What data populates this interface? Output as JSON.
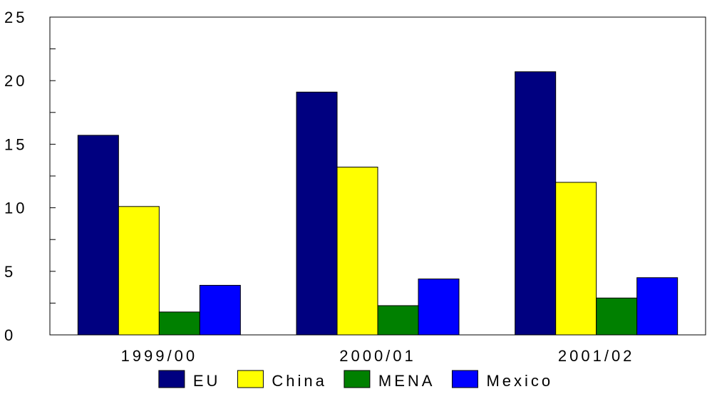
{
  "chart_data": {
    "type": "bar",
    "categories": [
      "1999/00",
      "2000/01",
      "2001/02"
    ],
    "series": [
      {
        "name": "EU",
        "color": "#000080",
        "values": [
          15.7,
          19.1,
          20.7
        ]
      },
      {
        "name": "China",
        "color": "#ffff00",
        "values": [
          10.1,
          13.2,
          12.0
        ]
      },
      {
        "name": "MENA",
        "color": "#008000",
        "values": [
          1.8,
          2.3,
          2.9
        ]
      },
      {
        "name": "Mexico",
        "color": "#0000ff",
        "values": [
          3.9,
          4.4,
          4.5
        ]
      }
    ],
    "yticks": [
      "0",
      "5",
      "10",
      "15",
      "20",
      "25"
    ],
    "ylim": [
      0,
      25
    ],
    "grid": false,
    "legend": "bottom",
    "title": "",
    "xlabel": "",
    "ylabel": ""
  }
}
